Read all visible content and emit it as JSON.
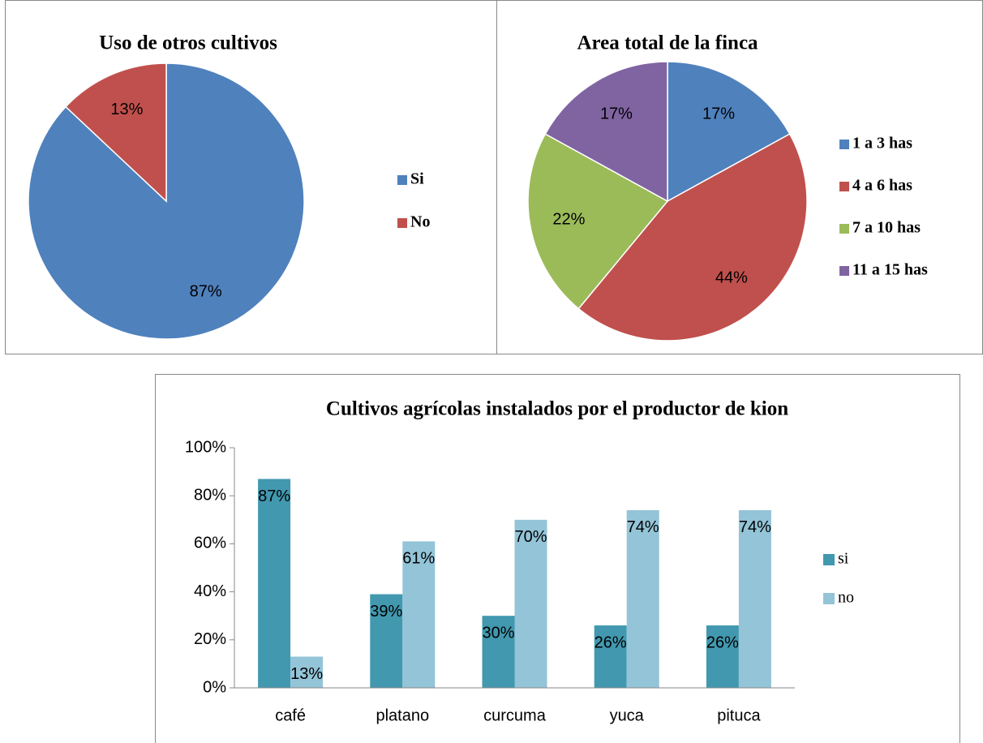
{
  "chart_data": [
    {
      "type": "pie",
      "title": "Uso de otros cultivos",
      "categories": [
        "Si",
        "No"
      ],
      "values": [
        87,
        13
      ],
      "value_labels": [
        "87%",
        "13%"
      ],
      "colors": [
        "#4f81bd",
        "#c0504d"
      ],
      "legend": "right"
    },
    {
      "type": "pie",
      "title": "Area total de la finca",
      "categories": [
        "1 a 3 has",
        "4  a  6 has",
        "7 a 10 has",
        "11 a 15  has"
      ],
      "values": [
        17,
        44,
        22,
        17
      ],
      "value_labels": [
        "17%",
        "44%",
        "22%",
        "17%"
      ],
      "colors": [
        "#4f81bd",
        "#c0504d",
        "#9bbb59",
        "#8064a2"
      ],
      "legend": "right"
    },
    {
      "type": "bar",
      "title": "Cultivos agrícolas instalados por el productor de kion",
      "categories": [
        "café",
        "platano",
        "curcuma",
        "yuca",
        "pituca"
      ],
      "series": [
        {
          "name": "si",
          "color": "#4198af",
          "values": [
            87,
            39,
            30,
            26,
            26
          ],
          "value_labels": [
            "87%",
            "39%",
            "30%",
            "26%",
            "26%"
          ]
        },
        {
          "name": "no",
          "color": "#93c4d7",
          "values": [
            13,
            61,
            70,
            74,
            74
          ],
          "value_labels": [
            "13%",
            "61%",
            "70%",
            "74%",
            "74%"
          ]
        }
      ],
      "ylim": [
        0,
        100
      ],
      "yticks": [
        {
          "value": 0,
          "label": "0%"
        },
        {
          "value": 20,
          "label": "20%"
        },
        {
          "value": 40,
          "label": "40%"
        },
        {
          "value": 60,
          "label": "60%"
        },
        {
          "value": 80,
          "label": "80%"
        },
        {
          "value": 100,
          "label": "100%"
        }
      ],
      "legend": "right"
    }
  ]
}
